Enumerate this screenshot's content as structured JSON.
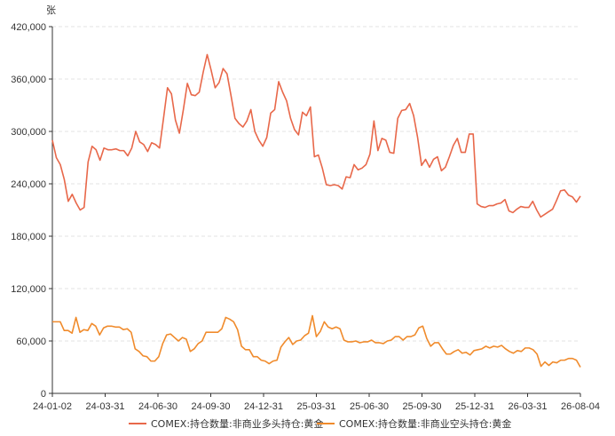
{
  "chart_data": {
    "type": "line",
    "unit_label": "张",
    "ylim": [
      0,
      420000
    ],
    "yticks": [
      0,
      60000,
      120000,
      180000,
      240000,
      300000,
      360000,
      420000
    ],
    "ytick_labels": [
      "0",
      "60,000",
      "120,000",
      "180,000",
      "240,000",
      "300,000",
      "360,000",
      "420,000"
    ],
    "xtick_labels": [
      "24-01-02",
      "24-03-31",
      "24-06-30",
      "24-09-30",
      "24-12-31",
      "25-03-31",
      "25-06-30",
      "25-09-30",
      "25-12-31",
      "26-03-31",
      "26-08-04"
    ],
    "grid": "horizontal-dashed",
    "legend_position": "bottom",
    "series": [
      {
        "name": "COMEX:持仓数量:非商业多头持仓:黄金",
        "color": "#e8684a",
        "values": [
          290000,
          270000,
          262000,
          245000,
          220000,
          228000,
          218000,
          210000,
          213000,
          265000,
          283000,
          279000,
          267000,
          281000,
          279000,
          279000,
          280000,
          278000,
          278000,
          272000,
          281000,
          300000,
          288000,
          285000,
          277000,
          287000,
          285000,
          281000,
          315000,
          350000,
          343000,
          313000,
          298000,
          325000,
          355000,
          342000,
          341000,
          345000,
          368000,
          388000,
          370000,
          350000,
          356000,
          372000,
          366000,
          341000,
          315000,
          309000,
          305000,
          312000,
          325000,
          300000,
          290000,
          283000,
          293000,
          321000,
          325000,
          357000,
          345000,
          335000,
          315000,
          302000,
          296000,
          322000,
          318000,
          328000,
          271000,
          273000,
          258000,
          239000,
          238000,
          239000,
          238000,
          234000,
          248000,
          247000,
          262000,
          256000,
          258000,
          262000,
          274000,
          312000,
          278000,
          292000,
          290000,
          276000,
          275000,
          315000,
          324000,
          325000,
          332000,
          318000,
          293000,
          261000,
          268000,
          259000,
          268000,
          271000,
          255000,
          259000,
          271000,
          284000,
          292000,
          276000,
          276000,
          297000,
          297000,
          217000,
          214000,
          213000,
          215000,
          215000,
          217000,
          218000,
          222000,
          209000,
          207000,
          211000,
          214000,
          213000,
          213000,
          220000,
          210000,
          202000,
          205000,
          208000,
          211000,
          221000,
          232000,
          233000,
          227000,
          225000,
          219000,
          226000
        ]
      },
      {
        "name": "COMEX:持仓数量:非商业空头持仓:黄金",
        "color": "#f08b2c",
        "values": [
          82000,
          82000,
          82000,
          72000,
          72000,
          69000,
          87000,
          70000,
          73000,
          72000,
          80000,
          77000,
          67000,
          75000,
          77000,
          77000,
          76000,
          76000,
          73000,
          74000,
          70000,
          51000,
          48000,
          43000,
          42000,
          37000,
          37000,
          42000,
          57000,
          67000,
          68000,
          64000,
          60000,
          64000,
          62000,
          48000,
          51000,
          57000,
          60000,
          70000,
          70000,
          70000,
          70000,
          74000,
          87000,
          85000,
          82000,
          73000,
          54000,
          50000,
          50000,
          42000,
          42000,
          38000,
          37000,
          34000,
          37000,
          38000,
          53000,
          59000,
          64000,
          56000,
          60000,
          61000,
          66000,
          69000,
          89000,
          65000,
          71000,
          82000,
          76000,
          74000,
          76000,
          74000,
          61000,
          59000,
          59000,
          60000,
          58000,
          59000,
          59000,
          61000,
          58000,
          58000,
          57000,
          60000,
          61000,
          65000,
          65000,
          61000,
          65000,
          65000,
          67000,
          75000,
          77000,
          63000,
          54000,
          58000,
          58000,
          51000,
          45000,
          45000,
          48000,
          50000,
          46000,
          47000,
          44000,
          49000,
          50000,
          51000,
          54000,
          52000,
          54000,
          53000,
          55000,
          51000,
          48000,
          46000,
          49000,
          48000,
          52000,
          52000,
          50000,
          45000,
          31000,
          36000,
          32000,
          36000,
          35000,
          38000,
          38000,
          40000,
          40000,
          38000,
          30000
        ]
      }
    ]
  }
}
